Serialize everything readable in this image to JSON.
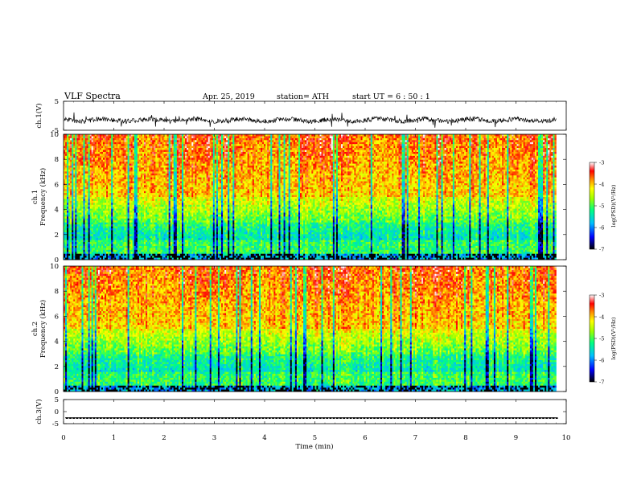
{
  "header": {
    "title": "VLF Spectra",
    "date": "Apr. 25, 2019",
    "station": "station= ATH",
    "start": "start  UT  =   6  : 50 : 1"
  },
  "colors": {
    "spectrum_stops": [
      "#000000",
      "#0000ff",
      "#00bfff",
      "#00ff80",
      "#9aff00",
      "#ffff00",
      "#ff9000",
      "#ff0000",
      "#ffffff"
    ],
    "trace": "#000000"
  },
  "chart_data": [
    {
      "type": "line",
      "name": "ch1-waveform",
      "ylabel": "ch.1(V)",
      "ylim": [
        -5,
        5
      ],
      "yticks": [
        -5,
        5
      ],
      "x_range": [
        0,
        9.8
      ],
      "baseline": -1.5,
      "min_sample": -4.2,
      "max_sample": 1.8
    },
    {
      "type": "heatmap",
      "name": "ch1-spectrogram",
      "ylabel": [
        "ch.1",
        "Frequency  (kHz)"
      ],
      "ylim": [
        0,
        10
      ],
      "yticks": [
        0,
        2,
        4,
        6,
        8,
        10
      ],
      "x_range": [
        0,
        9.8
      ],
      "colorbar": {
        "label": "log(PSD)(V²/Hz)",
        "range": [
          -7,
          -3
        ],
        "ticks": [
          -7,
          -6,
          -5,
          -4,
          -3
        ]
      }
    },
    {
      "type": "heatmap",
      "name": "ch2-spectrogram",
      "ylabel": [
        "ch.2",
        "Frequency  (kHz)"
      ],
      "ylim": [
        0,
        10
      ],
      "yticks": [
        0,
        2,
        4,
        6,
        8,
        10
      ],
      "x_range": [
        0,
        9.8
      ],
      "colorbar": {
        "label": "log(PSD)(V²/Hz)",
        "range": [
          -7,
          -3
        ],
        "ticks": [
          -7,
          -6,
          -5,
          -4,
          -3
        ]
      }
    },
    {
      "type": "line",
      "name": "ch3-waveform",
      "ylabel": "ch.3(V)",
      "ylim": [
        -5,
        5
      ],
      "yticks": [
        -5,
        0,
        5
      ],
      "x_range": [
        0,
        9.8
      ],
      "baseline": -2.6,
      "pulse_high": -2.4,
      "pulse_low": -3.0
    }
  ],
  "xaxis": {
    "label": "Time  (min)",
    "ticks": [
      0,
      1,
      2,
      3,
      4,
      5,
      6,
      7,
      8,
      9,
      10
    ],
    "range": [
      0,
      10
    ]
  }
}
